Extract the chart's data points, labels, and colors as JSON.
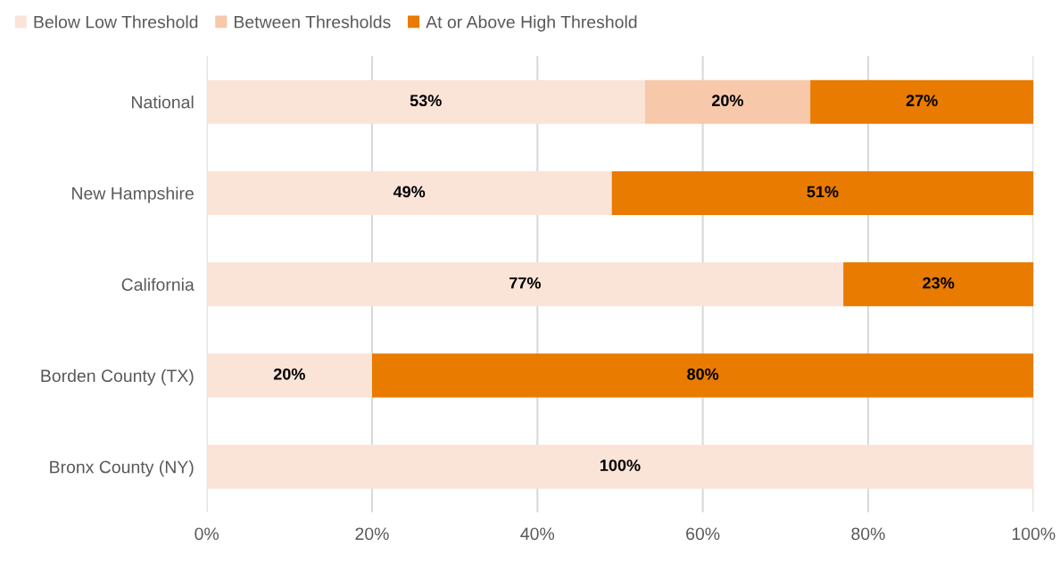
{
  "chart_data": {
    "type": "bar",
    "orientation": "horizontal",
    "stacked": true,
    "categories": [
      "National",
      "New Hampshire",
      "California",
      "Borden County (TX)",
      "Bronx County (NY)"
    ],
    "series": [
      {
        "name": "Below Low Threshold",
        "color": "#fae3d7",
        "values": [
          53,
          49,
          77,
          20,
          100
        ],
        "value_labels": [
          "53%",
          "49%",
          "77%",
          "20%",
          "100%"
        ]
      },
      {
        "name": "Between Thresholds",
        "color": "#f7c8aa",
        "values": [
          20,
          0,
          0,
          0,
          0
        ],
        "value_labels": [
          "20%",
          null,
          null,
          null,
          null
        ]
      },
      {
        "name": "At or Above High Threshold",
        "color": "#e87b00",
        "values": [
          27,
          51,
          23,
          80,
          0
        ],
        "value_labels": [
          "27%",
          "51%",
          "23%",
          "80%",
          null
        ]
      }
    ],
    "xlim": [
      0,
      100
    ],
    "xticks": [
      {
        "value": 0,
        "label": "0%"
      },
      {
        "value": 20,
        "label": "20%"
      },
      {
        "value": 40,
        "label": "40%"
      },
      {
        "value": 60,
        "label": "60%"
      },
      {
        "value": 80,
        "label": "80%"
      },
      {
        "value": 100,
        "label": "100%"
      }
    ],
    "grid": "x",
    "legend": "top left"
  }
}
